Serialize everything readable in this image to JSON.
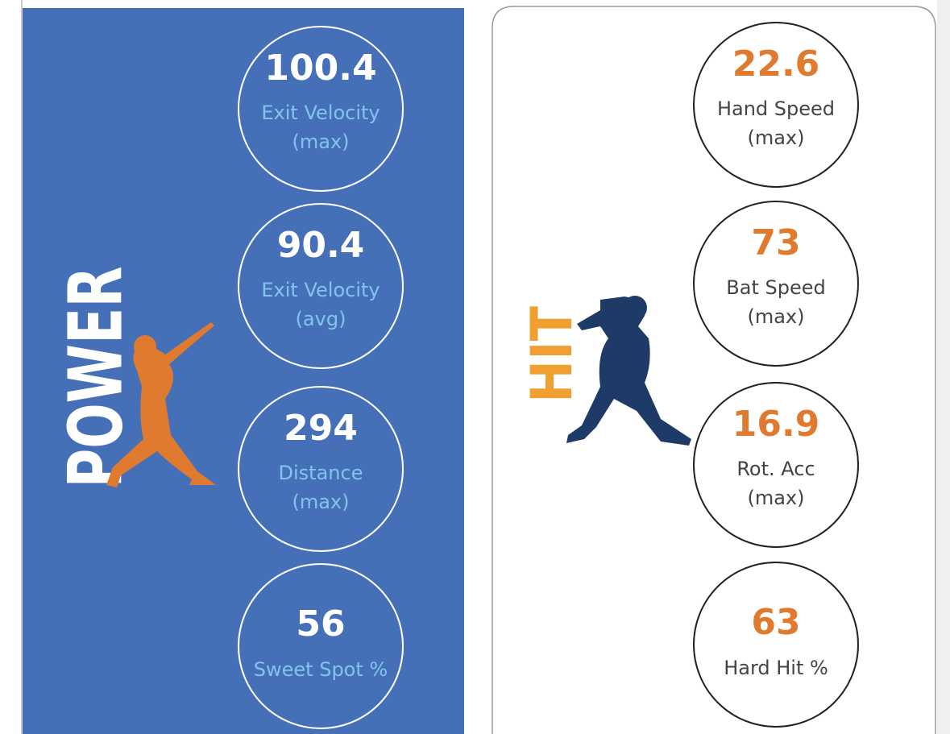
{
  "power": {
    "title": "POWER",
    "metrics": [
      {
        "value": "100.4",
        "label": [
          "Exit Velocity",
          "(max)"
        ]
      },
      {
        "value": "90.4",
        "label": [
          "Exit Velocity",
          "(avg)"
        ]
      },
      {
        "value": "294",
        "label": [
          "Distance",
          "(max)"
        ]
      },
      {
        "value": "56",
        "label": [
          "Sweet Spot %"
        ]
      }
    ]
  },
  "hit": {
    "title": "HIT",
    "metrics": [
      {
        "value": "22.6",
        "label": [
          "Hand Speed",
          "(max)"
        ]
      },
      {
        "value": "73",
        "label": [
          "Bat Speed",
          "(max)"
        ]
      },
      {
        "value": "16.9",
        "label": [
          "Rot. Acc",
          "(max)"
        ]
      },
      {
        "value": "63",
        "label": [
          "Hard Hit %"
        ]
      }
    ]
  }
}
